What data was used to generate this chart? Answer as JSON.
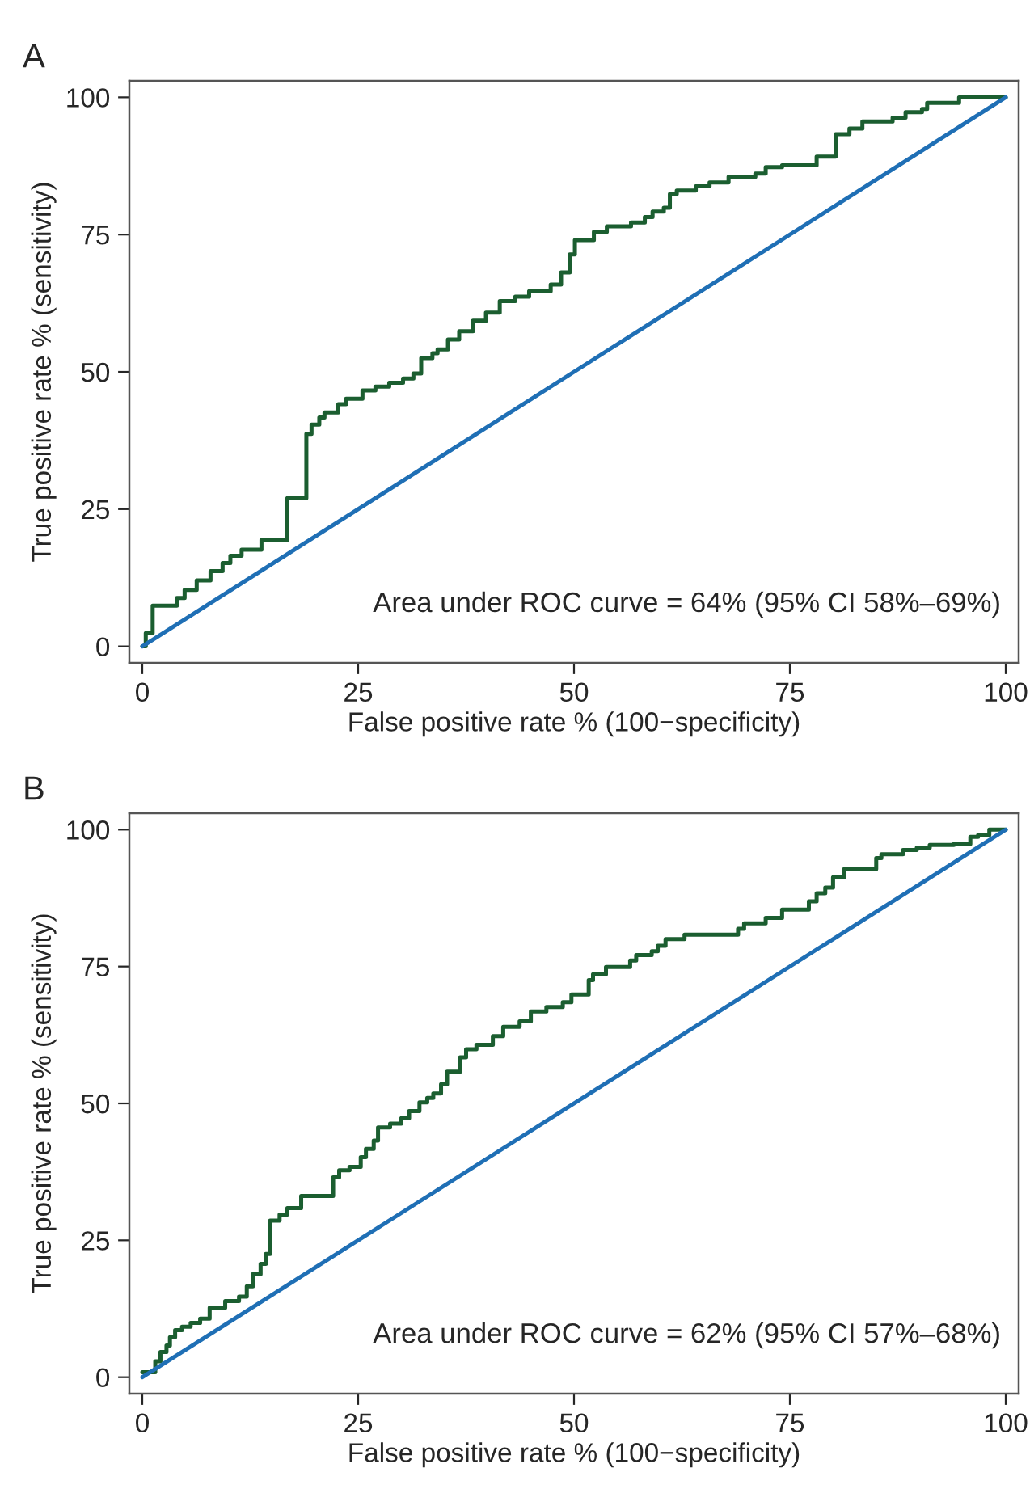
{
  "chart_data": [
    {
      "type": "step",
      "title": "A",
      "xlabel": "False positive rate % (100−specificity)",
      "ylabel": "True positive rate % (sensitivity)",
      "xlim": [
        -1.5,
        101.5
      ],
      "ylim": [
        -3,
        103
      ],
      "xticks": [
        0,
        25,
        50,
        75,
        100
      ],
      "yticks": [
        0,
        25,
        50,
        75,
        100
      ],
      "grid": false,
      "legend": false,
      "annotations": [
        "Area under ROC curve = 64% (95% CI 58%–69%)"
      ],
      "series": [
        {
          "color": "#1b5e30",
          "x": [
            0,
            0.4,
            1.2,
            4.0,
            4.9,
            6.3,
            7.9,
            9.3,
            10.2,
            11.5,
            13.8,
            16.8,
            19.0,
            19.6,
            20.5,
            21.1,
            22.7,
            23.6,
            25.5,
            27.0,
            28.6,
            30.2,
            31.4,
            32.3,
            33.6,
            34.2,
            35.4,
            36.7,
            38.3,
            39.8,
            41.4,
            43.2,
            44.8,
            47.3,
            48.5,
            49.5,
            50.1,
            52.3,
            53.8,
            56.6,
            58.2,
            59.1,
            60.4,
            61.1,
            61.9,
            64.1,
            65.7,
            67.9,
            71.0,
            72.2,
            74.1,
            78.1,
            80.3,
            81.9,
            83.4,
            86.9,
            88.4,
            90.3,
            90.9,
            94.6,
            100
          ],
          "values": [
            0,
            2.4,
            7.4,
            8.8,
            10.3,
            12,
            13.7,
            15.2,
            16.5,
            17.6,
            19.4,
            27,
            38.7,
            40.4,
            41.7,
            42.6,
            44.1,
            45.1,
            46.6,
            47.3,
            48.0,
            48.8,
            49.7,
            52.5,
            53.4,
            54.1,
            55.9,
            57.4,
            59.3,
            60.8,
            62.9,
            63.7,
            64.7,
            65.9,
            68.1,
            71.4,
            74.0,
            75.5,
            76.5,
            77.2,
            78.2,
            79.2,
            79.9,
            82.4,
            83.0,
            83.8,
            84.5,
            85.5,
            86.1,
            87.3,
            87.6,
            89.2,
            93.3,
            94.3,
            95.6,
            96.3,
            97.3,
            97.9,
            99.0,
            100,
            100
          ]
        },
        {
          "type": "line",
          "color": "#1f6fb5",
          "x": [
            0,
            100
          ],
          "values": [
            0,
            100
          ]
        }
      ]
    },
    {
      "type": "step",
      "title": "B",
      "xlabel": "False positive rate % (100−specificity)",
      "ylabel": "True positive rate % (sensitivity)",
      "xlim": [
        -1.5,
        101.5
      ],
      "ylim": [
        -3,
        103
      ],
      "xticks": [
        0,
        25,
        50,
        75,
        100
      ],
      "yticks": [
        0,
        25,
        50,
        75,
        100
      ],
      "grid": false,
      "legend": false,
      "annotations": [
        "Area under ROC curve = 62% (95% CI 57%–68%)"
      ],
      "series": [
        {
          "color": "#1b5e30",
          "x": [
            0,
            1.5,
            2.1,
            2.8,
            3.2,
            3.8,
            4.6,
            5.6,
            6.7,
            7.8,
            9.6,
            11.2,
            12.1,
            12.8,
            13.7,
            14.3,
            14.8,
            15.9,
            16.8,
            18.4,
            22.1,
            22.8,
            24.0,
            25.3,
            25.9,
            26.8,
            27.3,
            28.7,
            30.0,
            30.9,
            32.1,
            33.0,
            33.7,
            34.6,
            35.3,
            36.8,
            37.5,
            38.7,
            40.6,
            41.8,
            43.7,
            45.0,
            46.8,
            48.7,
            49.7,
            51.7,
            52.2,
            53.7,
            56.5,
            57.2,
            59.0,
            59.7,
            60.6,
            62.8,
            69.0,
            69.7,
            72.2,
            74.1,
            77.2,
            78.1,
            79.1,
            80.0,
            81.3,
            85.0,
            85.6,
            88.1,
            89.7,
            91.2,
            94.0,
            95.9,
            96.8,
            98.1,
            100
          ],
          "values": [
            0.9,
            2.9,
            4.6,
            5.8,
            7.3,
            8.6,
            9.2,
            9.9,
            10.7,
            12.7,
            13.9,
            14.7,
            16.6,
            18.8,
            20.7,
            22.5,
            28.6,
            29.7,
            30.9,
            33.1,
            36.5,
            37.8,
            38.4,
            40.2,
            41.7,
            43.2,
            45.6,
            46.3,
            47.3,
            48.6,
            50.2,
            51.0,
            51.8,
            53.5,
            55.8,
            58.4,
            59.9,
            60.7,
            62.3,
            64.0,
            65.0,
            66.8,
            67.6,
            68.5,
            69.9,
            72.5,
            73.6,
            74.9,
            76.1,
            77.1,
            77.8,
            78.8,
            80.0,
            80.8,
            81.9,
            82.9,
            83.9,
            85.4,
            86.9,
            88.4,
            89.4,
            91.3,
            92.8,
            94.8,
            95.5,
            96.3,
            96.7,
            97.2,
            97.4,
            98.7,
            99.0,
            100,
            100
          ]
        },
        {
          "type": "line",
          "color": "#1f6fb5",
          "x": [
            0,
            100
          ],
          "values": [
            0,
            100
          ]
        }
      ]
    }
  ]
}
